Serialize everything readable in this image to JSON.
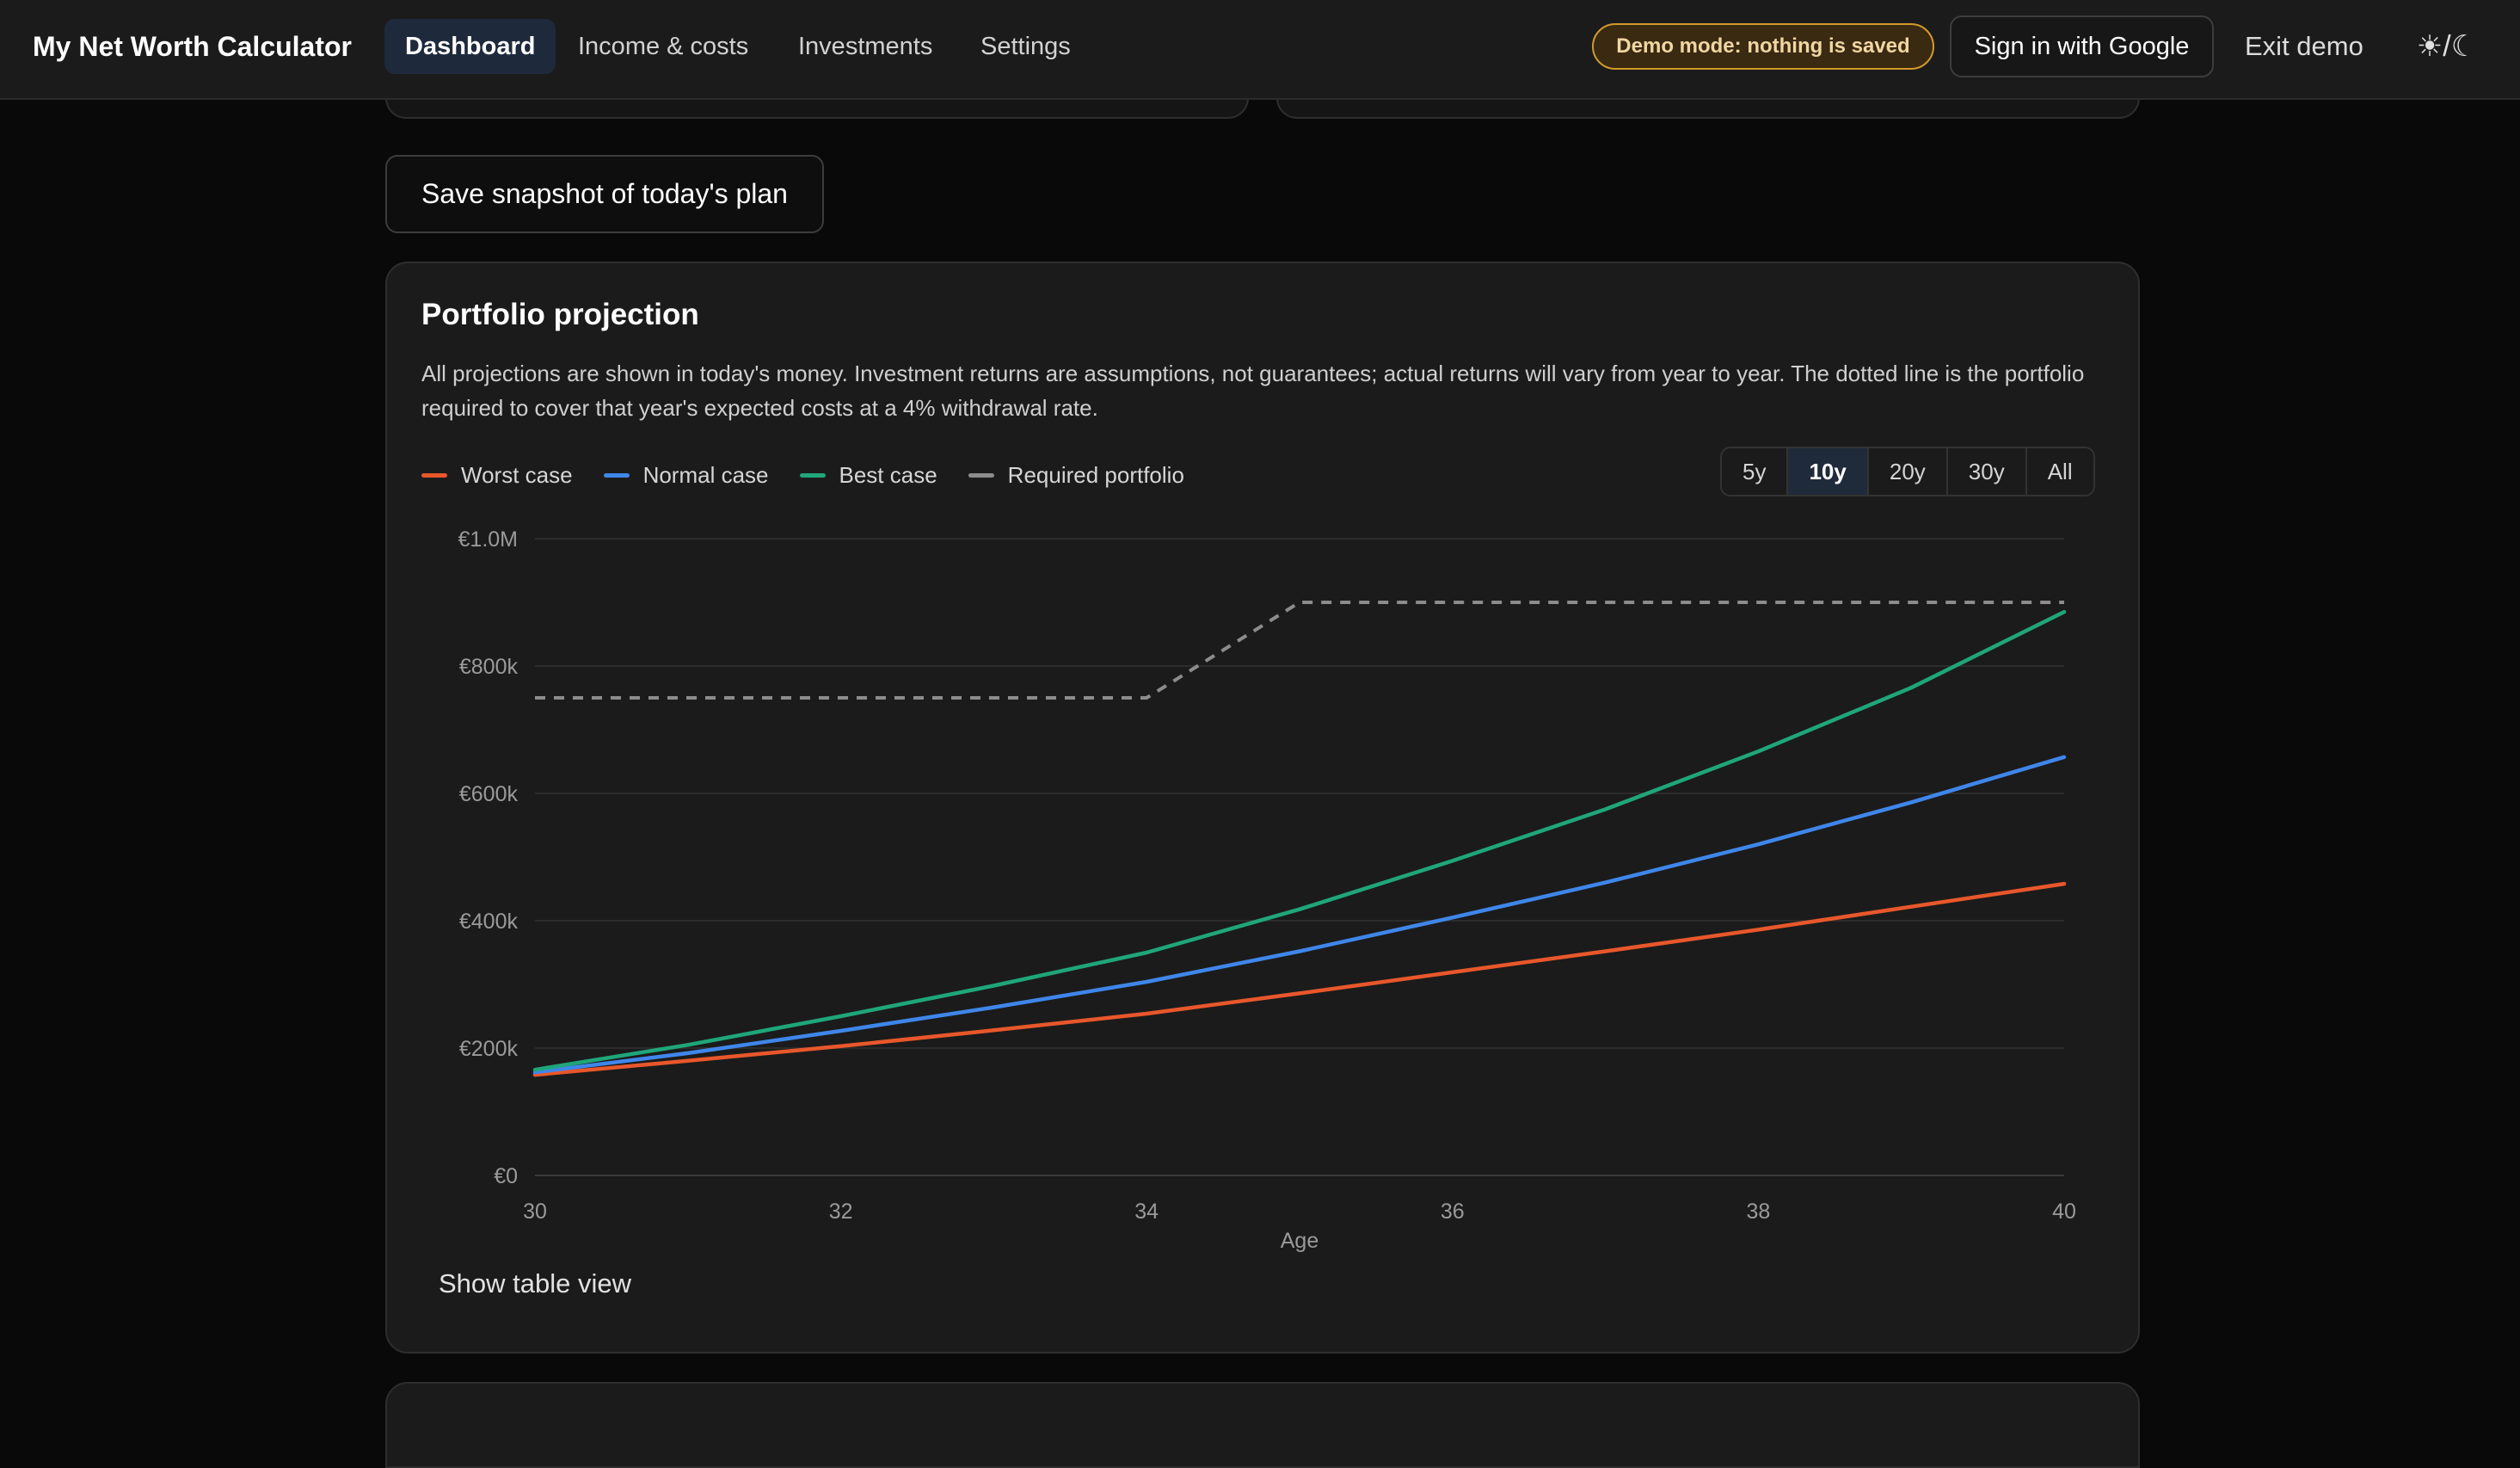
{
  "header": {
    "brand": "My Net Worth Calculator",
    "nav": [
      {
        "label": "Dashboard",
        "active": true
      },
      {
        "label": "Income & costs",
        "active": false
      },
      {
        "label": "Investments",
        "active": false
      },
      {
        "label": "Settings",
        "active": false
      }
    ],
    "demo_badge": "Demo mode: nothing is saved",
    "sign_in": "Sign in with Google",
    "exit_demo": "Exit demo",
    "theme_toggle": "☀/☾"
  },
  "snapshot_button": "Save snapshot of today's plan",
  "projection": {
    "title": "Portfolio projection",
    "description": "All projections are shown in today's money. Investment returns are assumptions, not guarantees; actual returns will vary from year to year. The dotted line is the portfolio required to cover that year's expected costs at a 4% withdrawal rate.",
    "ranges": [
      {
        "label": "5y",
        "active": false
      },
      {
        "label": "10y",
        "active": true
      },
      {
        "label": "20y",
        "active": false
      },
      {
        "label": "30y",
        "active": false
      },
      {
        "label": "All",
        "active": false
      }
    ],
    "show_table": "Show table view"
  },
  "colors": {
    "worst": "#e8572b",
    "normal": "#3f86ea",
    "best": "#1fa67a",
    "required": "#8c8c8c"
  },
  "chart_data": {
    "type": "line",
    "xlabel": "Age",
    "ylabel": "",
    "xlim": [
      30,
      40
    ],
    "ylim": [
      0,
      1000000
    ],
    "x_ticks": [
      30,
      32,
      34,
      36,
      38,
      40
    ],
    "x_tick_labels": [
      "30",
      "32",
      "34",
      "36",
      "38",
      "40"
    ],
    "y_ticks": [
      0,
      200000,
      400000,
      600000,
      800000,
      1000000
    ],
    "y_tick_labels": [
      "€0",
      "€200k",
      "€400k",
      "€600k",
      "€800k",
      "€1.0M"
    ],
    "grid": true,
    "legend": "top-left",
    "x": [
      30,
      31,
      32,
      33,
      34,
      35,
      36,
      37,
      38,
      39,
      40
    ],
    "series": [
      {
        "name": "Worst case",
        "color_key": "worst",
        "dashed": false,
        "values": [
          158000,
          180000,
          203000,
          228000,
          254000,
          286000,
          319000,
          352000,
          386000,
          422000,
          458000
        ]
      },
      {
        "name": "Normal case",
        "color_key": "normal",
        "dashed": false,
        "values": [
          162000,
          192000,
          227000,
          264000,
          304000,
          352000,
          405000,
          460000,
          520000,
          586000,
          657000
        ]
      },
      {
        "name": "Best case",
        "color_key": "best",
        "dashed": false,
        "values": [
          166000,
          205000,
          250000,
          298000,
          350000,
          418000,
          494000,
          575000,
          666000,
          766000,
          885000
        ]
      },
      {
        "name": "Required portfolio",
        "color_key": "required",
        "dashed": true,
        "values": [
          750000,
          750000,
          750000,
          750000,
          750000,
          900000,
          900000,
          900000,
          900000,
          900000,
          900000
        ]
      }
    ]
  }
}
